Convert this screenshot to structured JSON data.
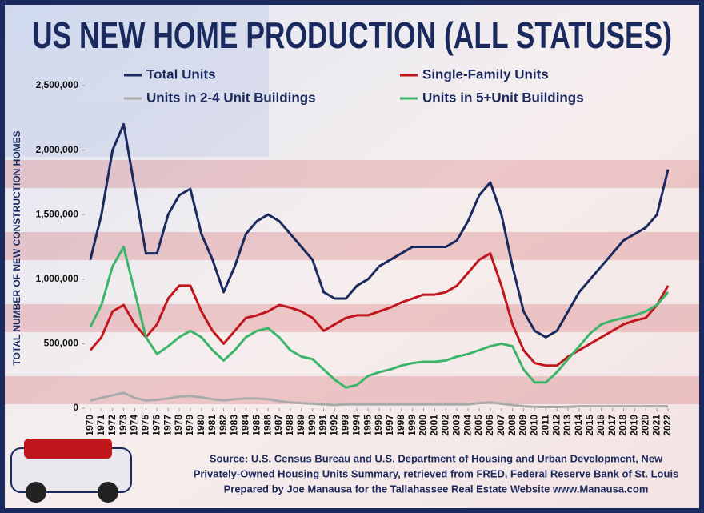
{
  "chart_data": {
    "type": "line",
    "title": "US NEW HOME PRODUCTION (ALL STATUSES)",
    "y_label": "TOTAL NUMBER OF NEW CONSTRUCTION HOMES",
    "source": [
      "Source: U.S. Census Bureau and U.S. Department of Housing and Urban Development, New",
      "Privately-Owned Housing Units Summary, retrieved from FRED, Federal Reserve Bank of St. Louis",
      "Prepared by Joe Manausa for the Tallahassee Real Estate Website  www.Manausa.com"
    ],
    "x": [
      1970,
      1971,
      1972,
      1973,
      1974,
      1975,
      1976,
      1977,
      1978,
      1979,
      1980,
      1981,
      1982,
      1983,
      1984,
      1985,
      1986,
      1987,
      1988,
      1989,
      1990,
      1991,
      1992,
      1993,
      1994,
      1995,
      1996,
      1997,
      1998,
      1999,
      2000,
      2001,
      2002,
      2003,
      2004,
      2005,
      2006,
      2007,
      2008,
      2009,
      2010,
      2011,
      2012,
      2013,
      2014,
      2015,
      2016,
      2017,
      2018,
      2019,
      2020,
      2021,
      2022
    ],
    "xlim": [
      1969.5,
      2022.5
    ],
    "xticks": [
      1970,
      1971,
      1972,
      1973,
      1974,
      1975,
      1976,
      1977,
      1978,
      1979,
      1980,
      1981,
      1982,
      1983,
      1984,
      1985,
      1986,
      1987,
      1988,
      1989,
      1990,
      1991,
      1992,
      1993,
      1994,
      1995,
      1996,
      1997,
      1998,
      1999,
      2000,
      2001,
      2002,
      2003,
      2004,
      2005,
      2006,
      2007,
      2008,
      2009,
      2010,
      2011,
      2012,
      2013,
      2014,
      2015,
      2016,
      2017,
      2018,
      2019,
      2020,
      2021,
      2022
    ],
    "ylim": [
      0,
      2500000
    ],
    "yticks": [
      0,
      {
        "value": 500000,
        "label": "500,000"
      },
      {
        "value": 1000000,
        "label": "1,000,000"
      },
      {
        "value": 1500000,
        "label": "1,500,000"
      },
      {
        "value": 2000000,
        "label": "2,000,000"
      },
      {
        "value": 2500000,
        "label": "2,500,000"
      }
    ],
    "series": [
      {
        "name": "Total Units",
        "color": "#1b2a5e",
        "values": [
          1150000,
          1500000,
          2000000,
          2200000,
          1700000,
          1200000,
          1200000,
          1500000,
          1650000,
          1700000,
          1350000,
          1150000,
          900000,
          1100000,
          1350000,
          1450000,
          1500000,
          1450000,
          1350000,
          1250000,
          1150000,
          900000,
          850000,
          850000,
          950000,
          1000000,
          1100000,
          1150000,
          1200000,
          1250000,
          1250000,
          1250000,
          1250000,
          1300000,
          1450000,
          1650000,
          1750000,
          1500000,
          1100000,
          750000,
          600000,
          550000,
          600000,
          750000,
          900000,
          1000000,
          1100000,
          1200000,
          1300000,
          1350000,
          1400000,
          1500000,
          1850000
        ]
      },
      {
        "name": "Single-Family Units",
        "color": "#c0161c",
        "values": [
          450000,
          550000,
          750000,
          800000,
          650000,
          550000,
          650000,
          850000,
          950000,
          950000,
          750000,
          600000,
          500000,
          600000,
          700000,
          720000,
          750000,
          800000,
          780000,
          750000,
          700000,
          600000,
          650000,
          700000,
          720000,
          720000,
          750000,
          780000,
          820000,
          850000,
          880000,
          880000,
          900000,
          950000,
          1050000,
          1150000,
          1200000,
          950000,
          650000,
          450000,
          350000,
          330000,
          330000,
          400000,
          450000,
          500000,
          550000,
          600000,
          650000,
          680000,
          700000,
          800000,
          950000
        ]
      },
      {
        "name": "Units in 2-4 Unit Buildings",
        "color": "#aaaaaa",
        "values": [
          60000,
          80000,
          100000,
          120000,
          80000,
          60000,
          65000,
          75000,
          90000,
          95000,
          85000,
          70000,
          60000,
          70000,
          75000,
          75000,
          70000,
          55000,
          45000,
          40000,
          35000,
          30000,
          25000,
          30000,
          30000,
          30000,
          30000,
          30000,
          30000,
          30000,
          30000,
          30000,
          30000,
          30000,
          30000,
          40000,
          45000,
          35000,
          25000,
          15000,
          10000,
          10000,
          10000,
          10000,
          15000,
          15000,
          15000,
          15000,
          15000,
          15000,
          15000,
          15000,
          15000
        ]
      },
      {
        "name": "Units in 5+Unit Buildings",
        "color": "#3cb56b",
        "values": [
          630000,
          800000,
          1100000,
          1250000,
          900000,
          550000,
          420000,
          480000,
          550000,
          600000,
          550000,
          450000,
          370000,
          450000,
          550000,
          600000,
          620000,
          550000,
          450000,
          400000,
          380000,
          300000,
          220000,
          160000,
          180000,
          250000,
          280000,
          300000,
          330000,
          350000,
          360000,
          360000,
          370000,
          400000,
          420000,
          450000,
          480000,
          500000,
          480000,
          300000,
          200000,
          200000,
          280000,
          380000,
          480000,
          580000,
          650000,
          680000,
          700000,
          720000,
          750000,
          800000,
          900000
        ]
      }
    ]
  }
}
